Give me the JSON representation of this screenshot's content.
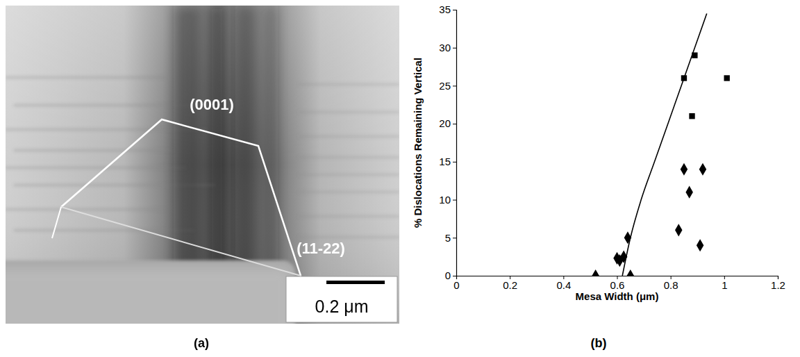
{
  "panel_a": {
    "panel_label": "(a)",
    "annotations": [
      "(0001)",
      "(11-22)"
    ],
    "scale_bar": "0.2 μm"
  },
  "chart_data": {
    "type": "scatter",
    "panel_label": "(b)",
    "x_label": "Mesa Width (μm)",
    "y_label": "% Dislocations Remaining Vertical",
    "xlim": [
      0,
      1.2
    ],
    "xticks": [
      0,
      0.2,
      0.4,
      0.6,
      0.8,
      1,
      1.2
    ],
    "ylim": [
      0,
      35
    ],
    "yticks": [
      0,
      5,
      10,
      15,
      20,
      25,
      30,
      35
    ],
    "grid": false,
    "series": [
      {
        "type": "scatter",
        "marker": "square",
        "color": "#000000",
        "x": [
          0.85,
          0.89,
          0.88,
          1.01
        ],
        "values": [
          26,
          29,
          21,
          26
        ]
      },
      {
        "type": "scatter",
        "marker": "diamond",
        "color": "#000000",
        "x": [
          0.52,
          0.6,
          0.61,
          0.625,
          0.64,
          0.65,
          0.83,
          0.85,
          0.87,
          0.91,
          0.92
        ],
        "values": [
          0,
          2.3,
          2,
          2.5,
          5,
          0,
          6,
          14,
          11,
          4,
          14
        ]
      },
      {
        "type": "line",
        "line_style": "solid",
        "color": "#000000",
        "x": [
          0.62,
          0.65,
          0.69,
          0.74,
          0.79,
          0.84,
          0.89,
          0.935
        ],
        "values": [
          0,
          5,
          10,
          15,
          20,
          25,
          30,
          34.5
        ]
      }
    ]
  }
}
